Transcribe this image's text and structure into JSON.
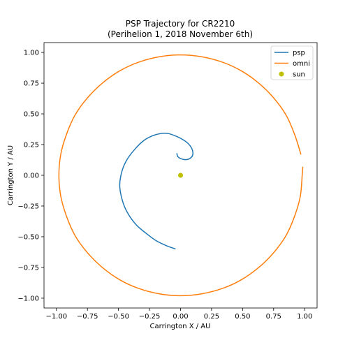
{
  "chart_data": {
    "type": "line",
    "title": "PSP Trajectory for CR2210",
    "subtitle": "(Perihelion 1, 2018 November 6th)",
    "xlabel": "Carrington X / AU",
    "ylabel": "Carrington Y / AU",
    "xlim": [
      -1.1,
      1.1
    ],
    "ylim": [
      -1.08,
      1.08
    ],
    "xticks": [
      -1.0,
      -0.75,
      -0.5,
      -0.25,
      0.0,
      0.25,
      0.5,
      0.75,
      1.0
    ],
    "xtick_labels": [
      "−1.00",
      "−0.75",
      "−0.50",
      "−0.25",
      "0.00",
      "0.25",
      "0.50",
      "0.75",
      "1.00"
    ],
    "yticks": [
      -1.0,
      -0.75,
      -0.5,
      -0.25,
      0.0,
      0.25,
      0.5,
      0.75,
      1.0
    ],
    "ytick_labels": [
      "−1.00",
      "−0.75",
      "−0.50",
      "−0.25",
      "0.00",
      "0.25",
      "0.50",
      "0.75",
      "1.00"
    ],
    "grid": false,
    "legend_position": "top-right",
    "series": [
      {
        "name": "psp",
        "kind": "line",
        "color": "#1f77b4",
        "points": [
          [
            -0.04,
            -0.6
          ],
          [
            -0.12,
            -0.57
          ],
          [
            -0.2,
            -0.53
          ],
          [
            -0.28,
            -0.47
          ],
          [
            -0.36,
            -0.4
          ],
          [
            -0.43,
            -0.3
          ],
          [
            -0.47,
            -0.2
          ],
          [
            -0.49,
            -0.08
          ],
          [
            -0.47,
            0.04
          ],
          [
            -0.43,
            0.13
          ],
          [
            -0.37,
            0.21
          ],
          [
            -0.3,
            0.28
          ],
          [
            -0.23,
            0.32
          ],
          [
            -0.16,
            0.34
          ],
          [
            -0.1,
            0.34
          ],
          [
            -0.04,
            0.32
          ],
          [
            0.02,
            0.29
          ],
          [
            0.06,
            0.26
          ],
          [
            0.09,
            0.22
          ],
          [
            0.1,
            0.18
          ],
          [
            0.09,
            0.15
          ],
          [
            0.06,
            0.13
          ],
          [
            0.02,
            0.13
          ],
          [
            -0.02,
            0.15
          ],
          [
            -0.03,
            0.18
          ]
        ]
      },
      {
        "name": "omni",
        "kind": "line",
        "color": "#ff7f0e",
        "points": [
          [
            0.97,
            0.17
          ],
          [
            0.92,
            0.33
          ],
          [
            0.85,
            0.49
          ],
          [
            0.75,
            0.63
          ],
          [
            0.63,
            0.75
          ],
          [
            0.49,
            0.85
          ],
          [
            0.34,
            0.92
          ],
          [
            0.17,
            0.965
          ],
          [
            0.0,
            0.98
          ],
          [
            -0.17,
            0.965
          ],
          [
            -0.34,
            0.92
          ],
          [
            -0.49,
            0.85
          ],
          [
            -0.63,
            0.75
          ],
          [
            -0.75,
            0.63
          ],
          [
            -0.85,
            0.49
          ],
          [
            -0.92,
            0.33
          ],
          [
            -0.965,
            0.17
          ],
          [
            -0.98,
            0.0
          ],
          [
            -0.965,
            -0.17
          ],
          [
            -0.92,
            -0.33
          ],
          [
            -0.85,
            -0.49
          ],
          [
            -0.75,
            -0.63
          ],
          [
            -0.63,
            -0.75
          ],
          [
            -0.49,
            -0.85
          ],
          [
            -0.34,
            -0.92
          ],
          [
            -0.17,
            -0.965
          ],
          [
            0.0,
            -0.98
          ],
          [
            0.17,
            -0.965
          ],
          [
            0.34,
            -0.92
          ],
          [
            0.49,
            -0.85
          ],
          [
            0.63,
            -0.75
          ],
          [
            0.75,
            -0.63
          ],
          [
            0.85,
            -0.49
          ],
          [
            0.92,
            -0.33
          ],
          [
            0.965,
            -0.17
          ],
          [
            0.98,
            0.0
          ],
          [
            0.985,
            0.07
          ]
        ]
      },
      {
        "name": "sun",
        "kind": "scatter",
        "color": "#bfbf00",
        "points": [
          [
            0.0,
            0.0
          ]
        ]
      }
    ]
  }
}
